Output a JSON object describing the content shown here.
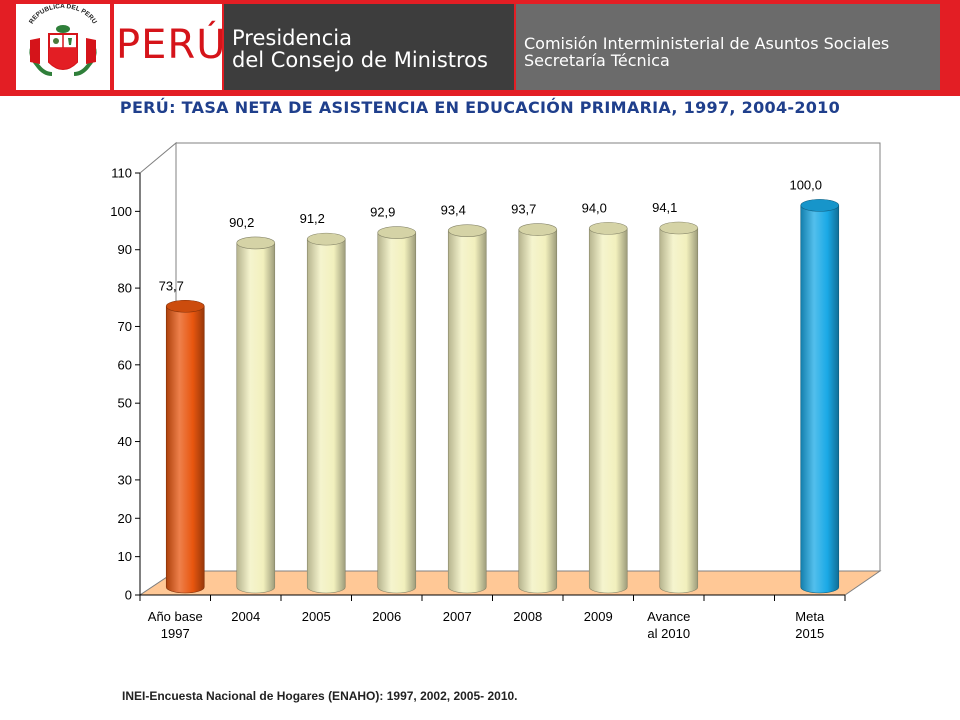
{
  "header": {
    "crest_caption": "REPUBLICA DEL PERU",
    "brand": "PERÚ",
    "presidencia_line1": "Presidencia",
    "presidencia_line2": "del Consejo de Ministros",
    "comision_line1": "Comisión Interministerial de Asuntos Sociales",
    "comision_line2": "Secretaría Técnica",
    "colors": {
      "red": "#e31e24",
      "dark_gray": "#3d3d3d",
      "mid_gray": "#6b6b6b"
    }
  },
  "chart_data": {
    "type": "bar",
    "title": "PERÚ: TASA NETA DE ASISTENCIA EN EDUCACIÓN PRIMARIA, 1997, 2004-2010",
    "categories": [
      [
        "Año base",
        "1997"
      ],
      [
        "2004"
      ],
      [
        "2005"
      ],
      [
        "2006"
      ],
      [
        "2007"
      ],
      [
        "2008"
      ],
      [
        "2009"
      ],
      [
        "Avance",
        "al 2010"
      ],
      [],
      [
        "Meta",
        "2015"
      ]
    ],
    "values": [
      73.7,
      90.2,
      91.2,
      92.9,
      93.4,
      93.7,
      94.0,
      94.1,
      null,
      100.0
    ],
    "value_labels": [
      "73,7",
      "90,2",
      "91,2",
      "92,9",
      "93,4",
      "93,7",
      "94,0",
      "94,1",
      "",
      "100,0"
    ],
    "bar_colors": [
      "#e8560f",
      "#f2f0bd",
      "#f2f0bd",
      "#f2f0bd",
      "#f2f0bd",
      "#f2f0bd",
      "#f2f0bd",
      "#f2f0bd",
      null,
      "#1aa9e6"
    ],
    "ylim": [
      0,
      110
    ],
    "yticks": [
      0,
      10,
      20,
      30,
      40,
      50,
      60,
      70,
      80,
      90,
      100,
      110
    ],
    "grid": false,
    "floor_color": "#ffc896"
  },
  "source": "INEI-Encuesta Nacional de Hogares (ENAHO): 1997, 2002, 2005- 2010."
}
